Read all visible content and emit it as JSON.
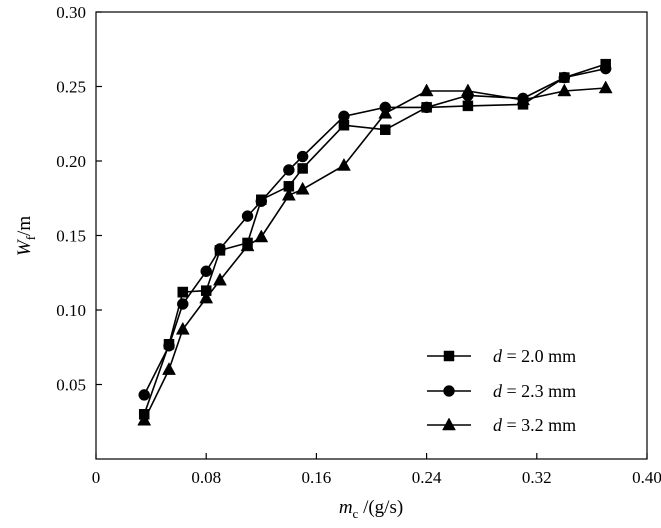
{
  "chart_data": {
    "type": "line",
    "title": "",
    "xlabel": {
      "main": "m",
      "sub": "c",
      "rest": " /(g/s)"
    },
    "ylabel": {
      "main": "W",
      "sub": "f",
      "rest": "/m"
    },
    "xlim": [
      0,
      0.4
    ],
    "ylim": [
      0,
      0.3
    ],
    "x_ticks": [
      0,
      0.08,
      0.16,
      0.24,
      0.32,
      0.4
    ],
    "x_tick_labels": [
      "0",
      "0.08",
      "0.16",
      "0.24",
      "0.32",
      "0.40"
    ],
    "y_ticks": [
      0.05,
      0.1,
      0.15,
      0.2,
      0.25,
      0.3
    ],
    "y_tick_labels": [
      "0.05",
      "0.10",
      "0.15",
      "0.20",
      "0.25",
      "0.30"
    ],
    "grid": false,
    "legend_position": "bottom-right",
    "series": [
      {
        "name": "d = 2.0 mm",
        "legend": {
          "var": "d",
          "rest": " = 2.0 mm"
        },
        "marker": "square",
        "x": [
          0.035,
          0.053,
          0.063,
          0.063,
          0.08,
          0.09,
          0.11,
          0.12,
          0.14,
          0.15,
          0.18,
          0.21,
          0.24,
          0.27,
          0.31,
          0.34,
          0.37
        ],
        "y": [
          0.03,
          0.077,
          0.112,
          0.112,
          0.113,
          0.14,
          0.145,
          0.174,
          0.183,
          0.195,
          0.224,
          0.221,
          0.236,
          0.237,
          0.238,
          0.256,
          0.265
        ]
      },
      {
        "name": "d = 2.3 mm",
        "legend": {
          "var": "d",
          "rest": " = 2.3 mm"
        },
        "marker": "circle",
        "x": [
          0.035,
          0.053,
          0.063,
          0.08,
          0.09,
          0.11,
          0.12,
          0.14,
          0.15,
          0.18,
          0.21,
          0.24,
          0.27,
          0.31,
          0.34,
          0.37
        ],
        "y": [
          0.043,
          0.076,
          0.104,
          0.126,
          0.141,
          0.163,
          0.173,
          0.194,
          0.203,
          0.23,
          0.236,
          0.236,
          0.244,
          0.242,
          0.256,
          0.262
        ]
      },
      {
        "name": "d = 3.2 mm",
        "legend": {
          "var": "d",
          "rest": " = 3.2 mm"
        },
        "marker": "triangle",
        "x": [
          0.035,
          0.053,
          0.063,
          0.08,
          0.09,
          0.11,
          0.12,
          0.14,
          0.15,
          0.18,
          0.21,
          0.24,
          0.27,
          0.31,
          0.34,
          0.37
        ],
        "y": [
          0.026,
          0.06,
          0.087,
          0.108,
          0.12,
          0.143,
          0.149,
          0.177,
          0.181,
          0.197,
          0.232,
          0.247,
          0.247,
          0.241,
          0.247,
          0.249
        ]
      }
    ]
  }
}
